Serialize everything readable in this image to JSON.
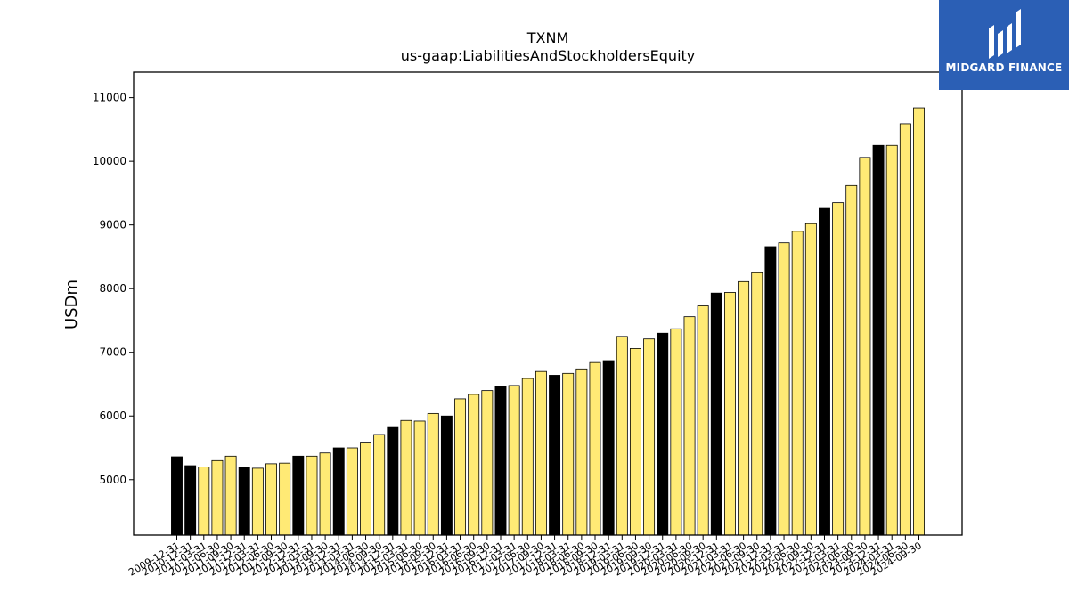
{
  "chart_data": {
    "type": "bar",
    "title": "TXNM",
    "subtitle": "us-gaap:LiabilitiesAndStockholdersEquity",
    "ylabel": "USDm",
    "xlabel": "",
    "ylim": [
      4130,
      11400
    ],
    "yticks": [
      5000,
      6000,
      7000,
      8000,
      9000,
      10000,
      11000
    ],
    "colors": {
      "fy": "#000000",
      "quarter": "#ffea75",
      "edge": "#000000"
    },
    "categories": [
      "2009-12-31",
      "2010-12-31",
      "2011-03-31",
      "2011-06-30",
      "2011-09-30",
      "2011-12-31",
      "2012-03-31",
      "2012-06-30",
      "2012-09-30",
      "2012-12-31",
      "2013-03-31",
      "2013-09-30",
      "2013-12-31",
      "2014-03-31",
      "2014-06-30",
      "2014-09-30",
      "2014-12-31",
      "2015-03-31",
      "2015-06-30",
      "2015-09-30",
      "2015-12-31",
      "2016-03-31",
      "2016-06-30",
      "2016-09-30",
      "2016-12-31",
      "2017-03-31",
      "2017-06-30",
      "2017-09-30",
      "2017-12-31",
      "2018-03-31",
      "2018-06-30",
      "2018-09-30",
      "2018-12-31",
      "2019-03-31",
      "2019-06-30",
      "2019-09-30",
      "2019-12-31",
      "2020-03-31",
      "2020-06-30",
      "2020-09-30",
      "2020-12-31",
      "2021-03-31",
      "2021-06-30",
      "2021-09-30",
      "2021-12-31",
      "2022-03-31",
      "2022-06-30",
      "2022-09-30",
      "2022-12-31",
      "2023-03-31",
      "2023-06-30",
      "2023-09-30",
      "2023-12-31",
      "2024-03-31",
      "2024-06-30",
      "2024-09-30"
    ],
    "values": [
      5360,
      5220,
      5200,
      5300,
      5370,
      5200,
      5180,
      5250,
      5260,
      5370,
      5370,
      5420,
      5500,
      5500,
      5590,
      5710,
      5820,
      5930,
      5920,
      6040,
      6000,
      6270,
      6340,
      6400,
      6460,
      6480,
      6590,
      6700,
      6640,
      6670,
      6740,
      6840,
      6870,
      7250,
      7060,
      7210,
      7300,
      7370,
      7560,
      7730,
      7930,
      7940,
      8110,
      8250,
      8660,
      8720,
      8900,
      9020,
      9260,
      9350,
      9620,
      10060,
      10250,
      10250,
      10590,
      10840
    ],
    "annual": [
      true,
      true,
      false,
      false,
      false,
      true,
      false,
      false,
      false,
      true,
      false,
      false,
      true,
      false,
      false,
      false,
      true,
      false,
      false,
      false,
      true,
      false,
      false,
      false,
      true,
      false,
      false,
      false,
      true,
      false,
      false,
      false,
      true,
      false,
      false,
      false,
      true,
      false,
      false,
      false,
      true,
      false,
      false,
      false,
      true,
      false,
      false,
      false,
      true,
      false,
      false,
      false,
      true,
      false,
      false,
      false
    ]
  },
  "logo": {
    "text": "MIDGARD FINANCE"
  }
}
